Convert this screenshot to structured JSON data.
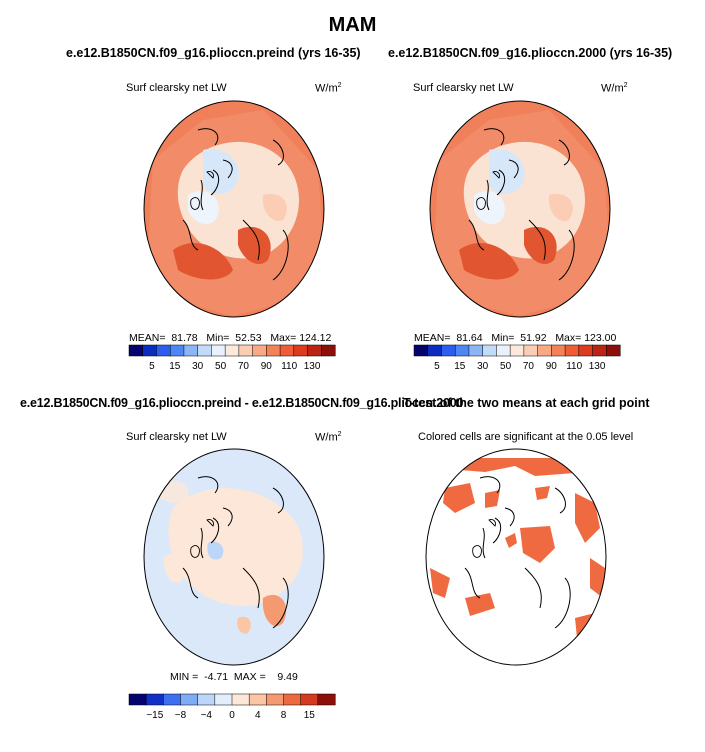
{
  "chart_data": [
    {
      "type": "heatmap",
      "title": "e.e12.B1850CN.f09_g16.plioccn.preind (yrs 16-35)",
      "subtitle": "Surf clearsky net LW",
      "units": "W/m",
      "units_sup": "2",
      "mean_label": "MEAN=",
      "mean": "81.78",
      "min_label": "Min=",
      "min": "52.53",
      "max_label": "Max=",
      "max": "124.12",
      "colorbar_ticks": [
        "5",
        "15",
        "30",
        "50",
        "70",
        "90",
        "110",
        "130"
      ]
    },
    {
      "type": "heatmap",
      "title": "e.e12.B1850CN.f09_g16.plioccn.2000 (yrs 16-35)",
      "subtitle": "Surf clearsky net LW",
      "units": "W/m",
      "units_sup": "2",
      "mean_label": "MEAN=",
      "mean": "81.64",
      "min_label": "Min=",
      "min": "51.92",
      "max_label": "Max=",
      "max": "123.00",
      "colorbar_ticks": [
        "5",
        "15",
        "30",
        "50",
        "70",
        "90",
        "110",
        "130"
      ]
    },
    {
      "type": "heatmap",
      "title": "e.e12.B1850CN.f09_g16.plioccn.preind - e.e12.B1850CN.f09_g16.plioccn.2000",
      "subtitle": "Surf clearsky net LW",
      "units": "W/m",
      "units_sup": "2",
      "min_label": "MIN =",
      "min": "-4.71",
      "max_label": "MAX =",
      "max": "9.49",
      "colorbar_ticks": [
        "−15",
        "−8",
        "−4",
        "0",
        "4",
        "8",
        "15"
      ]
    },
    {
      "type": "heatmap",
      "title": "T-test of the two means at each grid point",
      "subtitle": "Colored cells are significant at the 0.05 level"
    }
  ],
  "figure": {
    "season": "MAM"
  },
  "colors": {
    "abs_scale": [
      "#05036e",
      "#0a2dc0",
      "#2a5df0",
      "#4d86f5",
      "#8ab5f7",
      "#c2dbfa",
      "#e8f1fc",
      "#fde9dc",
      "#fbcdb4",
      "#f8a883",
      "#f58257",
      "#ef5c35",
      "#dd3a1f",
      "#bb2414",
      "#8c0f0b"
    ],
    "diff_scale": [
      "#05036e",
      "#1030c8",
      "#3d6ff0",
      "#80acf5",
      "#bcd6f9",
      "#e2eefc",
      "#fde7d8",
      "#fbc6a6",
      "#f59a70",
      "#ec6a3f",
      "#d63a1e",
      "#8c0f0b"
    ],
    "land": "#fbe3d3",
    "ice_blue": "#d7e7fa",
    "ocean_warm": "#f0805a",
    "ocean_hot": "#e15530",
    "diff_bg": "#dbe8fa",
    "sig": "#ef6a40"
  }
}
